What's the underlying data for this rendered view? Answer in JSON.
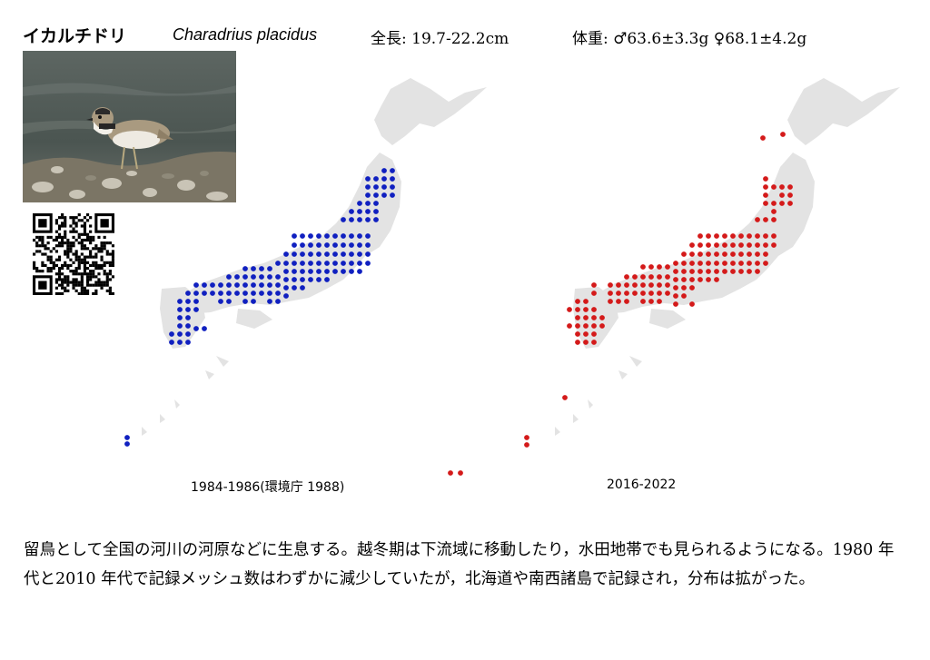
{
  "header": {
    "name_ja": "イカルチドリ",
    "name_sci": "Charadrius placidus",
    "length": "全長: 19.7-22.2cm",
    "weight": "体重: ♂63.6±3.3g ♀68.1±4.2g"
  },
  "photo": {
    "subject": "bird-photo"
  },
  "qr": {
    "subject": "qr-code"
  },
  "maps": [
    {
      "caption": "1984-1986(環境庁 1988)",
      "dot_color": "#1020c0"
    },
    {
      "caption": "2016-2022",
      "dot_color": "#d41a1a"
    }
  ],
  "colors": {
    "land": "#e3e3e3",
    "water_photo": "#56605a"
  },
  "description": "留鳥として全国の河川の河原などに生息する。越冬期は下流域に移動したり，水田地帯でも見られるようになる。1980 年代と2010 年代で記録メッシュ数はわずかに減少していたが，北海道や南西諸島で記録され，分布は拡がった。"
}
